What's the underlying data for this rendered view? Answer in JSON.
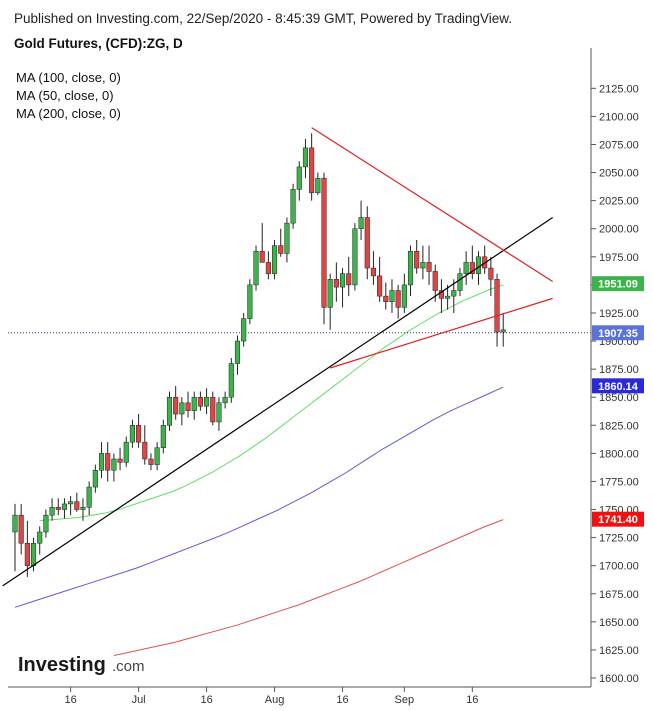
{
  "header": {
    "published": "Published on Investing.com, 22/Sep/2020 - 8:45:39 GMT, Powered by TradingView.",
    "symbol": "Gold Futures, (CFD):ZG, D"
  },
  "indicators": [
    {
      "label": "MA (100, close, 0)",
      "color": "#5b5bd6"
    },
    {
      "label": "MA (50, close, 0)",
      "color": "#66dd66"
    },
    {
      "label": "MA (200, close, 0)",
      "color": "#e0504a"
    }
  ],
  "logo": {
    "brand": "Investing",
    "suffix": ".com"
  },
  "colors": {
    "up": "#3cb44b",
    "down": "#e04545",
    "trend": "#000000",
    "triangle": "#e02020",
    "ma50": "#66dd66",
    "ma100": "#5b5bd6",
    "ma200": "#e0504a"
  },
  "chart_data": {
    "type": "candlestick",
    "title": "Gold Futures, (CFD):ZG, D",
    "ylim": [
      1592,
      2152
    ],
    "y_ticks": [
      1600,
      1625,
      1650,
      1675,
      1700,
      1725,
      1750,
      1775,
      1800,
      1825,
      1850,
      1875,
      1900,
      1925,
      1950,
      1975,
      2000,
      2025,
      2050,
      2075,
      2100,
      2125
    ],
    "x_ticks": [
      {
        "label": "16",
        "index": 9
      },
      {
        "label": "Jul",
        "index": 20
      },
      {
        "label": "16",
        "index": 31
      },
      {
        "label": "Aug",
        "index": 42
      },
      {
        "label": "16",
        "index": 53
      },
      {
        "label": "Sep",
        "index": 63
      },
      {
        "label": "16",
        "index": 74
      }
    ],
    "grid": false,
    "ohlc": [
      [
        1730,
        1755,
        1695,
        1745
      ],
      [
        1745,
        1755,
        1710,
        1720
      ],
      [
        1720,
        1740,
        1690,
        1700
      ],
      [
        1700,
        1725,
        1695,
        1720
      ],
      [
        1720,
        1735,
        1710,
        1730
      ],
      [
        1730,
        1750,
        1725,
        1745
      ],
      [
        1745,
        1760,
        1740,
        1752
      ],
      [
        1752,
        1760,
        1745,
        1750
      ],
      [
        1750,
        1760,
        1742,
        1755
      ],
      [
        1755,
        1762,
        1745,
        1757
      ],
      [
        1757,
        1765,
        1748,
        1750
      ],
      [
        1750,
        1760,
        1740,
        1752
      ],
      [
        1752,
        1775,
        1745,
        1770
      ],
      [
        1770,
        1790,
        1765,
        1785
      ],
      [
        1785,
        1810,
        1778,
        1800
      ],
      [
        1800,
        1810,
        1775,
        1785
      ],
      [
        1785,
        1800,
        1775,
        1795
      ],
      [
        1795,
        1805,
        1785,
        1792
      ],
      [
        1792,
        1815,
        1788,
        1810
      ],
      [
        1810,
        1830,
        1805,
        1825
      ],
      [
        1825,
        1835,
        1805,
        1810
      ],
      [
        1810,
        1825,
        1790,
        1795
      ],
      [
        1795,
        1800,
        1785,
        1790
      ],
      [
        1790,
        1810,
        1785,
        1805
      ],
      [
        1805,
        1830,
        1800,
        1825
      ],
      [
        1825,
        1855,
        1820,
        1850
      ],
      [
        1850,
        1860,
        1830,
        1835
      ],
      [
        1835,
        1850,
        1825,
        1845
      ],
      [
        1845,
        1855,
        1832,
        1838
      ],
      [
        1838,
        1855,
        1830,
        1850
      ],
      [
        1850,
        1855,
        1838,
        1842
      ],
      [
        1842,
        1858,
        1835,
        1850
      ],
      [
        1850,
        1855,
        1825,
        1828
      ],
      [
        1828,
        1850,
        1820,
        1845
      ],
      [
        1845,
        1855,
        1840,
        1850
      ],
      [
        1850,
        1885,
        1845,
        1880
      ],
      [
        1880,
        1905,
        1870,
        1900
      ],
      [
        1900,
        1925,
        1895,
        1920
      ],
      [
        1920,
        1955,
        1915,
        1950
      ],
      [
        1950,
        1985,
        1945,
        1980
      ],
      [
        1980,
        2005,
        1970,
        1970
      ],
      [
        1970,
        1980,
        1955,
        1960
      ],
      [
        1960,
        1990,
        1955,
        1985
      ],
      [
        1985,
        2000,
        1975,
        1978
      ],
      [
        1978,
        2010,
        1970,
        2005
      ],
      [
        2005,
        2040,
        2000,
        2035
      ],
      [
        2035,
        2060,
        2025,
        2055
      ],
      [
        2055,
        2080,
        2045,
        2072
      ],
      [
        2072,
        2085,
        2025,
        2032
      ],
      [
        2032,
        2050,
        2030,
        2045
      ],
      [
        2045,
        2050,
        1915,
        1930
      ],
      [
        1930,
        1960,
        1910,
        1955
      ],
      [
        1955,
        1970,
        1935,
        1948
      ],
      [
        1948,
        1965,
        1930,
        1960
      ],
      [
        1960,
        1975,
        1940,
        1950
      ],
      [
        1950,
        2005,
        1945,
        2000
      ],
      [
        2000,
        2025,
        1990,
        2010
      ],
      [
        2010,
        2020,
        1955,
        1965
      ],
      [
        1965,
        1980,
        1950,
        1958
      ],
      [
        1958,
        1975,
        1935,
        1940
      ],
      [
        1940,
        1952,
        1928,
        1935
      ],
      [
        1935,
        1955,
        1925,
        1945
      ],
      [
        1945,
        1950,
        1920,
        1930
      ],
      [
        1930,
        1960,
        1925,
        1950
      ],
      [
        1950,
        1985,
        1940,
        1980
      ],
      [
        1980,
        1990,
        1960,
        1965
      ],
      [
        1965,
        1985,
        1955,
        1970
      ],
      [
        1970,
        1985,
        1950,
        1962
      ],
      [
        1962,
        1968,
        1935,
        1945
      ],
      [
        1945,
        1955,
        1925,
        1938
      ],
      [
        1938,
        1950,
        1928,
        1940
      ],
      [
        1940,
        1955,
        1925,
        1945
      ],
      [
        1945,
        1965,
        1940,
        1960
      ],
      [
        1960,
        1980,
        1950,
        1970
      ],
      [
        1970,
        1985,
        1955,
        1960
      ],
      [
        1960,
        1980,
        1950,
        1975
      ],
      [
        1975,
        1985,
        1960,
        1965
      ],
      [
        1965,
        1975,
        1940,
        1955
      ],
      [
        1955,
        1960,
        1895,
        1908
      ],
      [
        1908,
        1925,
        1895,
        1910
      ]
    ],
    "trendline": {
      "from": [
        -2,
        1682
      ],
      "to": [
        87,
        2010
      ]
    },
    "triangle_upper": {
      "from": [
        48,
        2090
      ],
      "to": [
        87,
        1953
      ]
    },
    "triangle_lower": {
      "from": [
        51,
        1876
      ],
      "to": [
        87,
        1938
      ]
    },
    "current_price_line": 1907.35,
    "ma50": {
      "start": 4,
      "values": [
        1740,
        1741,
        1742,
        1743,
        1745,
        1747,
        1750,
        1754,
        1758,
        1762,
        1766,
        1771,
        1777,
        1783,
        1790,
        1797,
        1805,
        1813,
        1822,
        1831,
        1840,
        1849,
        1858,
        1867,
        1876,
        1885,
        1894,
        1902,
        1910,
        1917,
        1924,
        1930,
        1936,
        1941,
        1946,
        1950
      ]
    },
    "ma100": {
      "start": 0,
      "values": [
        1663,
        1668,
        1673,
        1678,
        1683,
        1688,
        1693,
        1698,
        1704,
        1710,
        1716,
        1722,
        1728,
        1735,
        1742,
        1749,
        1757,
        1765,
        1774,
        1783,
        1793,
        1803,
        1812,
        1821,
        1830,
        1838,
        1845,
        1852,
        1859
      ]
    },
    "ma200": {
      "start": 16,
      "values": [
        1620,
        1624,
        1628,
        1632,
        1637,
        1642,
        1647,
        1653,
        1659,
        1665,
        1672,
        1679,
        1686,
        1694,
        1702,
        1710,
        1718,
        1726,
        1734,
        1741
      ]
    },
    "price_badges": [
      {
        "label": "1951.09",
        "value": 1951.09,
        "color": "#3cb44b"
      },
      {
        "label": "1907.35",
        "value": 1907.35,
        "color": "#5b72d8"
      },
      {
        "label": "1860.14",
        "value": 1860.14,
        "color": "#2a2ad8"
      },
      {
        "label": "1741.40",
        "value": 1741.4,
        "color": "#ee1111"
      }
    ]
  }
}
